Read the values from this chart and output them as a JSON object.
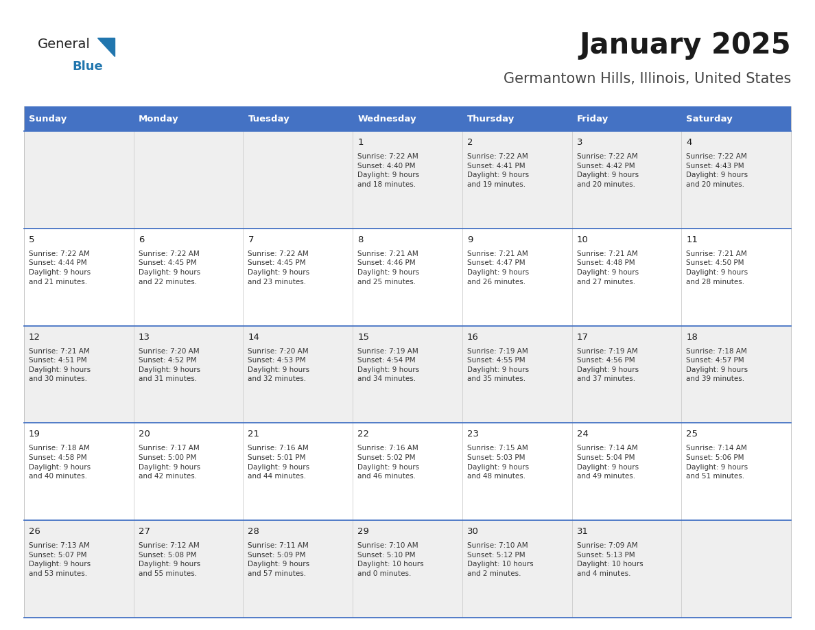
{
  "title": "January 2025",
  "subtitle": "Germantown Hills, Illinois, United States",
  "days_of_week": [
    "Sunday",
    "Monday",
    "Tuesday",
    "Wednesday",
    "Thursday",
    "Friday",
    "Saturday"
  ],
  "header_bg": "#4472C4",
  "header_text_color": "#FFFFFF",
  "row_bg_odd": "#EFEFEF",
  "row_bg_even": "#FFFFFF",
  "cell_text_color": "#333333",
  "day_num_color": "#1a1a1a",
  "border_color": "#4472C4",
  "title_color": "#1a1a1a",
  "subtitle_color": "#444444",
  "logo_general_color": "#222222",
  "logo_blue_color": "#2176AE",
  "calendar": [
    [
      {
        "day": null,
        "sunrise": null,
        "sunset": null,
        "daylight": null
      },
      {
        "day": null,
        "sunrise": null,
        "sunset": null,
        "daylight": null
      },
      {
        "day": null,
        "sunrise": null,
        "sunset": null,
        "daylight": null
      },
      {
        "day": 1,
        "sunrise": "7:22 AM",
        "sunset": "4:40 PM",
        "daylight": "9 hours\nand 18 minutes."
      },
      {
        "day": 2,
        "sunrise": "7:22 AM",
        "sunset": "4:41 PM",
        "daylight": "9 hours\nand 19 minutes."
      },
      {
        "day": 3,
        "sunrise": "7:22 AM",
        "sunset": "4:42 PM",
        "daylight": "9 hours\nand 20 minutes."
      },
      {
        "day": 4,
        "sunrise": "7:22 AM",
        "sunset": "4:43 PM",
        "daylight": "9 hours\nand 20 minutes."
      }
    ],
    [
      {
        "day": 5,
        "sunrise": "7:22 AM",
        "sunset": "4:44 PM",
        "daylight": "9 hours\nand 21 minutes."
      },
      {
        "day": 6,
        "sunrise": "7:22 AM",
        "sunset": "4:45 PM",
        "daylight": "9 hours\nand 22 minutes."
      },
      {
        "day": 7,
        "sunrise": "7:22 AM",
        "sunset": "4:45 PM",
        "daylight": "9 hours\nand 23 minutes."
      },
      {
        "day": 8,
        "sunrise": "7:21 AM",
        "sunset": "4:46 PM",
        "daylight": "9 hours\nand 25 minutes."
      },
      {
        "day": 9,
        "sunrise": "7:21 AM",
        "sunset": "4:47 PM",
        "daylight": "9 hours\nand 26 minutes."
      },
      {
        "day": 10,
        "sunrise": "7:21 AM",
        "sunset": "4:48 PM",
        "daylight": "9 hours\nand 27 minutes."
      },
      {
        "day": 11,
        "sunrise": "7:21 AM",
        "sunset": "4:50 PM",
        "daylight": "9 hours\nand 28 minutes."
      }
    ],
    [
      {
        "day": 12,
        "sunrise": "7:21 AM",
        "sunset": "4:51 PM",
        "daylight": "9 hours\nand 30 minutes."
      },
      {
        "day": 13,
        "sunrise": "7:20 AM",
        "sunset": "4:52 PM",
        "daylight": "9 hours\nand 31 minutes."
      },
      {
        "day": 14,
        "sunrise": "7:20 AM",
        "sunset": "4:53 PM",
        "daylight": "9 hours\nand 32 minutes."
      },
      {
        "day": 15,
        "sunrise": "7:19 AM",
        "sunset": "4:54 PM",
        "daylight": "9 hours\nand 34 minutes."
      },
      {
        "day": 16,
        "sunrise": "7:19 AM",
        "sunset": "4:55 PM",
        "daylight": "9 hours\nand 35 minutes."
      },
      {
        "day": 17,
        "sunrise": "7:19 AM",
        "sunset": "4:56 PM",
        "daylight": "9 hours\nand 37 minutes."
      },
      {
        "day": 18,
        "sunrise": "7:18 AM",
        "sunset": "4:57 PM",
        "daylight": "9 hours\nand 39 minutes."
      }
    ],
    [
      {
        "day": 19,
        "sunrise": "7:18 AM",
        "sunset": "4:58 PM",
        "daylight": "9 hours\nand 40 minutes."
      },
      {
        "day": 20,
        "sunrise": "7:17 AM",
        "sunset": "5:00 PM",
        "daylight": "9 hours\nand 42 minutes."
      },
      {
        "day": 21,
        "sunrise": "7:16 AM",
        "sunset": "5:01 PM",
        "daylight": "9 hours\nand 44 minutes."
      },
      {
        "day": 22,
        "sunrise": "7:16 AM",
        "sunset": "5:02 PM",
        "daylight": "9 hours\nand 46 minutes."
      },
      {
        "day": 23,
        "sunrise": "7:15 AM",
        "sunset": "5:03 PM",
        "daylight": "9 hours\nand 48 minutes."
      },
      {
        "day": 24,
        "sunrise": "7:14 AM",
        "sunset": "5:04 PM",
        "daylight": "9 hours\nand 49 minutes."
      },
      {
        "day": 25,
        "sunrise": "7:14 AM",
        "sunset": "5:06 PM",
        "daylight": "9 hours\nand 51 minutes."
      }
    ],
    [
      {
        "day": 26,
        "sunrise": "7:13 AM",
        "sunset": "5:07 PM",
        "daylight": "9 hours\nand 53 minutes."
      },
      {
        "day": 27,
        "sunrise": "7:12 AM",
        "sunset": "5:08 PM",
        "daylight": "9 hours\nand 55 minutes."
      },
      {
        "day": 28,
        "sunrise": "7:11 AM",
        "sunset": "5:09 PM",
        "daylight": "9 hours\nand 57 minutes."
      },
      {
        "day": 29,
        "sunrise": "7:10 AM",
        "sunset": "5:10 PM",
        "daylight": "10 hours\nand 0 minutes."
      },
      {
        "day": 30,
        "sunrise": "7:10 AM",
        "sunset": "5:12 PM",
        "daylight": "10 hours\nand 2 minutes."
      },
      {
        "day": 31,
        "sunrise": "7:09 AM",
        "sunset": "5:13 PM",
        "daylight": "10 hours\nand 4 minutes."
      },
      {
        "day": null,
        "sunrise": null,
        "sunset": null,
        "daylight": null
      }
    ]
  ],
  "fig_width": 11.88,
  "fig_height": 9.18,
  "dpi": 100
}
